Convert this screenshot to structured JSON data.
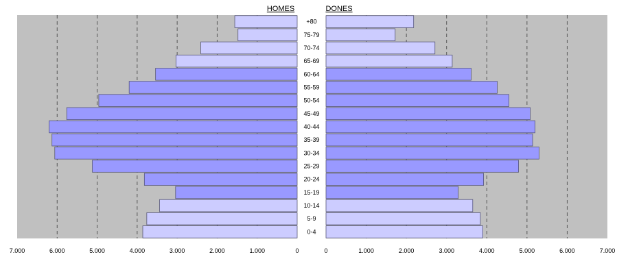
{
  "chart_data": {
    "type": "bar",
    "orientation": "horizontal",
    "subtype": "population-pyramid",
    "categories": [
      "0-4",
      "5-9",
      "10-14",
      "15-19",
      "20-24",
      "25-29",
      "30-34",
      "35-39",
      "40-44",
      "45-49",
      "50-54",
      "55-59",
      "60-64",
      "65-69",
      "70-74",
      "75-79",
      "+80"
    ],
    "series": [
      {
        "name": "HOMES",
        "side": "left",
        "values": [
          3860,
          3760,
          3440,
          3040,
          3820,
          5120,
          6060,
          6130,
          6200,
          5760,
          4960,
          4200,
          3540,
          3030,
          2410,
          1480,
          1560
        ]
      },
      {
        "name": "DONES",
        "side": "right",
        "values": [
          3900,
          3840,
          3650,
          3290,
          3920,
          4790,
          5300,
          5140,
          5200,
          5080,
          4550,
          4260,
          3610,
          3140,
          2710,
          1720,
          2180
        ]
      }
    ],
    "xlim": [
      0,
      7000
    ],
    "ticks": [
      "0",
      "1.000",
      "2.000",
      "3.000",
      "4.000",
      "5.000",
      "6.000",
      "7.000"
    ],
    "grid": true,
    "grid_style": "dashed-vertical",
    "colors": {
      "plot_bg": "#c0c0c0",
      "bar_dark": "#9999ff",
      "bar_light": "#ccccff",
      "bar_border": "#555577",
      "grid": "#555555"
    }
  }
}
